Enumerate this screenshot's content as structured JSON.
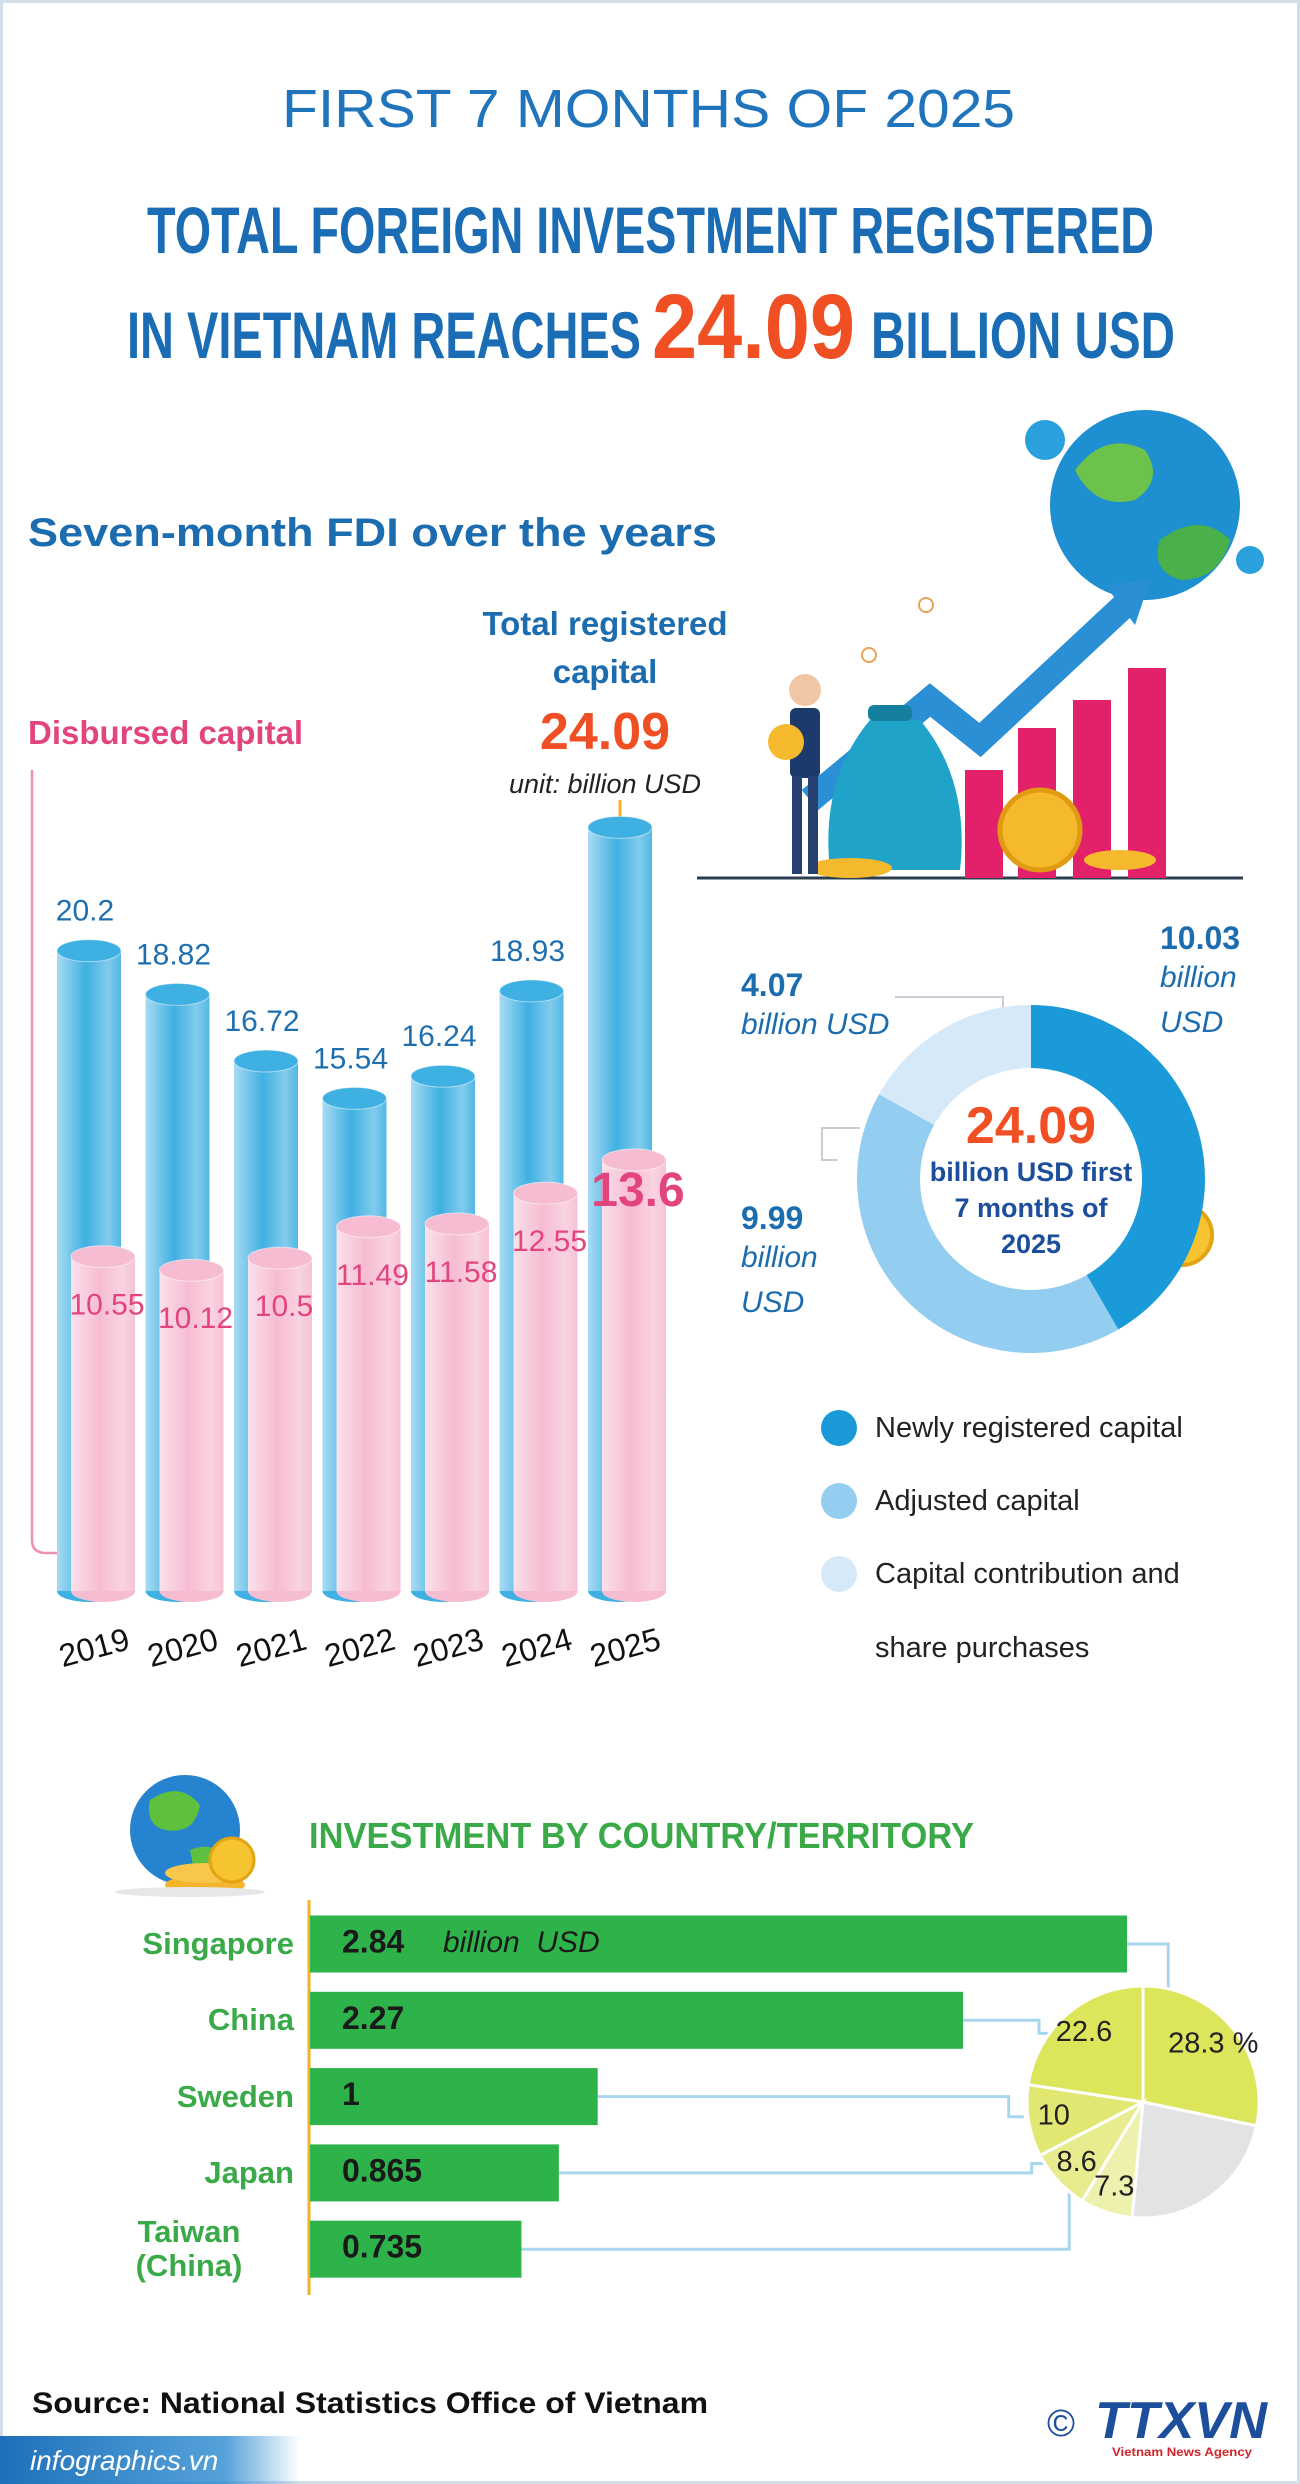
{
  "header": {
    "kicker": "FIRST 7 MONTHS OF 2025",
    "title_line1": "TOTAL FOREIGN INVESTMENT REGISTERED",
    "title_line2_prefix": "IN VIETNAM REACHES",
    "title_highlight": "24.09",
    "title_line2_suffix": "BILLION USD"
  },
  "chart_data": [
    {
      "type": "cylinder_bar",
      "title": "Seven-month FDI over the years",
      "unit": "unit: billion USD",
      "categories": [
        "2019",
        "2020",
        "2021",
        "2022",
        "2023",
        "2024",
        "2025"
      ],
      "series": [
        {
          "name": "Total registered capital",
          "color": "#3fb0e2",
          "values": [
            20.2,
            18.82,
            16.72,
            15.54,
            16.24,
            18.93,
            24.09
          ]
        },
        {
          "name": "Disbursed capital",
          "color": "#f6bcd2",
          "values": [
            10.55,
            10.12,
            10.5,
            11.49,
            11.58,
            12.55,
            13.6
          ]
        }
      ]
    },
    {
      "type": "donut",
      "center_value": 24.09,
      "center_label": "billion USD first 7 months of 2025",
      "unit": "billion USD",
      "categories": [
        "Newly registered capital",
        "Adjusted capital",
        "Capital contribution and share purchases"
      ],
      "values": [
        10.03,
        9.99,
        4.07
      ],
      "colors": [
        "#1a9ad8",
        "#93cdf0",
        "#d5e9f8"
      ]
    },
    {
      "type": "hbar",
      "title": "INVESTMENT BY COUNTRY/TERRITORY",
      "unit": "billion  USD",
      "categories": [
        "Singapore",
        "China",
        "Sweden",
        "Japan",
        "Taiwan (China)"
      ],
      "values": [
        2.84,
        2.27,
        1,
        0.865,
        0.735
      ],
      "color": "#2eb34b"
    },
    {
      "type": "pie",
      "values": [
        28.3,
        23.2,
        7.3,
        8.6,
        10,
        22.6
      ],
      "value_labels": [
        "28.3 %",
        null,
        "7.3",
        "8.6",
        "10",
        "22.6"
      ],
      "colors": [
        "#dde55b",
        "#e3e3e3",
        "#eef1ad",
        "#e8ec8f",
        "#e2e772",
        "#dde55b"
      ]
    }
  ],
  "footer": {
    "source": "Source: National Statistics Office of Vietnam",
    "site": "infographics.vn",
    "copyright": "©",
    "logo": "TTXVN",
    "agency": "Vietnam News Agency"
  }
}
